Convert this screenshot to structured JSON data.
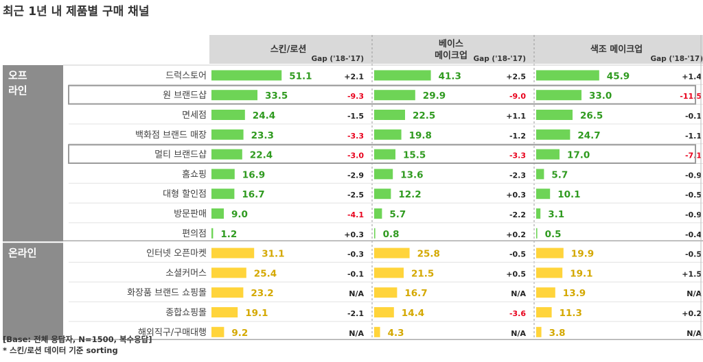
{
  "title": "최근 1년 내 제품별 구매 채널",
  "colors": {
    "offline_bar": "#6ed456",
    "online_bar": "#ffd43b",
    "negative_gap": "#e8001c",
    "header_bg": "#d9d9d9",
    "group_bg": "#8c8c8c",
    "text": "#404040"
  },
  "columns": [
    {
      "name": "스킨/로션",
      "gap_label": "Gap ('18-'17)"
    },
    {
      "name": "베이스\n메이크업",
      "gap_label": "Gap ('18-'17)"
    },
    {
      "name": "색조 메이크업",
      "gap_label": "Gap ('18-'17)"
    }
  ],
  "groups": [
    {
      "label": "오프\n라인",
      "rows": [
        0,
        8
      ]
    },
    {
      "label": "온라인",
      "rows": [
        9,
        13
      ]
    }
  ],
  "highlighted_rows": [
    1,
    4
  ],
  "chart_data": {
    "type": "bar",
    "categories": [
      "드럭스토어",
      "원 브랜드샵",
      "면세점",
      "백화점 브랜드 매장",
      "멀티 브랜드샵",
      "홈쇼핑",
      "대형 할인점",
      "방문판매",
      "편의점",
      "인터넷 오픈마켓",
      "소셜커머스",
      "화장품 브랜드 쇼핑몰",
      "종합쇼핑몰",
      "해외직구/구매대행"
    ],
    "series": [
      {
        "name": "스킨/로션",
        "values": [
          51.1,
          33.5,
          24.4,
          23.3,
          22.4,
          16.9,
          16.7,
          9.0,
          1.2,
          31.1,
          25.4,
          23.2,
          19.1,
          9.2
        ],
        "gaps": [
          "+2.1",
          "-9.3",
          "-1.5",
          "-3.3",
          "-3.0",
          "-2.9",
          "-2.5",
          "-4.1",
          "+0.3",
          "-0.3",
          "-0.1",
          "N/A",
          "-2.1",
          "N/A"
        ]
      },
      {
        "name": "베이스 메이크업",
        "values": [
          41.3,
          29.9,
          22.5,
          19.8,
          15.5,
          13.6,
          12.2,
          5.7,
          0.8,
          25.8,
          21.5,
          16.7,
          14.4,
          4.3
        ],
        "gaps": [
          "+2.5",
          "-9.0",
          "+1.1",
          "-1.2",
          "-3.3",
          "-2.3",
          "+0.3",
          "-2.2",
          "+0.2",
          "-0.5",
          "+0.5",
          "N/A",
          "-3.6",
          "N/A"
        ]
      },
      {
        "name": "색조 메이크업",
        "values": [
          45.9,
          33.0,
          26.5,
          24.7,
          17.0,
          5.7,
          10.1,
          3.1,
          0.5,
          19.9,
          19.1,
          13.9,
          11.3,
          3.8
        ],
        "gaps": [
          "+1.4",
          "-11.5",
          "-0.1",
          "-1.1",
          "-7.1",
          "-0.9",
          "-0.5",
          "-0.9",
          "-0.4",
          "-0.5",
          "+1.5",
          "N/A",
          "+0.2",
          "N/A"
        ]
      }
    ],
    "red_gaps": [
      [
        false,
        true,
        false,
        true,
        true,
        false,
        false,
        true,
        false,
        false,
        false,
        false,
        false,
        false
      ],
      [
        false,
        true,
        false,
        false,
        true,
        false,
        false,
        false,
        false,
        false,
        false,
        false,
        true,
        false
      ],
      [
        false,
        true,
        false,
        false,
        true,
        false,
        false,
        false,
        false,
        false,
        false,
        false,
        false,
        false
      ]
    ]
  },
  "footnotes": [
    "[Base: 전체 응답자, N=1500, 복수응답]",
    "* 스킨/로션 데이터 기준 sorting"
  ]
}
